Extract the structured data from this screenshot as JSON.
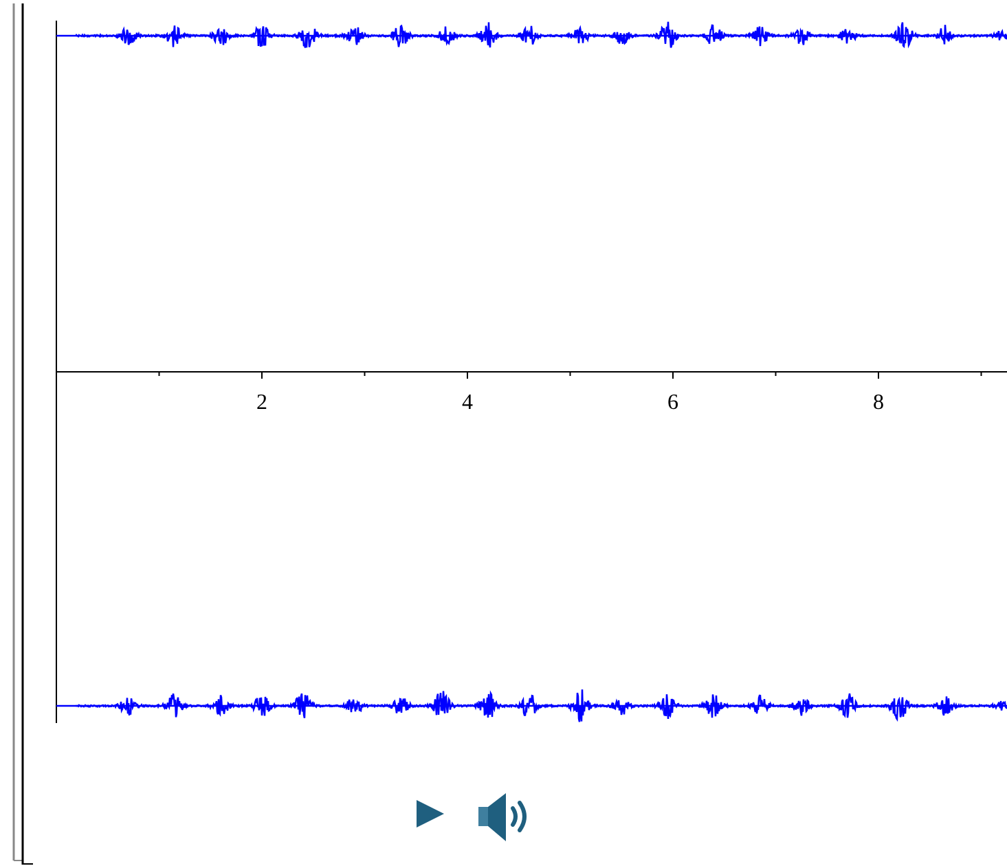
{
  "colors": {
    "waveform": "#0000ff",
    "axis": "#000000",
    "bracket_outer": "#888888",
    "bracket_inner": "#000000",
    "control_icon": "#1f5f7f"
  },
  "icons": {
    "play": "play-icon",
    "speaker": "speaker-icon"
  },
  "chart_data": {
    "type": "line",
    "title": "",
    "xlabel": "",
    "ylabel": "",
    "xlim": [
      0,
      9.3
    ],
    "x_ticks_major": [
      2,
      4,
      6,
      8
    ],
    "x_ticks_minor": [
      1,
      3,
      5,
      7,
      9
    ],
    "x_tick_labels": [
      "2",
      "4",
      "6",
      "8"
    ],
    "grid": false,
    "legend": "none",
    "channels": [
      {
        "name": "",
        "baseline": 0,
        "burst_times": [
          0.7,
          1.15,
          1.6,
          2.0,
          2.45,
          2.9,
          3.35,
          3.8,
          4.2,
          4.6,
          5.1,
          5.5,
          5.95,
          6.4,
          6.85,
          7.25,
          7.7,
          8.25,
          8.65,
          9.2
        ],
        "burst_amplitudes": [
          0.55,
          0.6,
          0.5,
          0.65,
          0.75,
          0.5,
          0.55,
          0.45,
          0.65,
          0.5,
          0.45,
          0.4,
          0.7,
          0.55,
          0.5,
          0.45,
          0.4,
          0.7,
          0.5,
          0.25
        ]
      },
      {
        "name": "",
        "baseline": 0,
        "burst_times": [
          0.7,
          1.15,
          1.6,
          2.0,
          2.4,
          2.9,
          3.35,
          3.75,
          4.2,
          4.6,
          5.1,
          5.5,
          5.95,
          6.4,
          6.85,
          7.25,
          7.7,
          8.2,
          8.65,
          9.2
        ],
        "burst_amplitudes": [
          0.45,
          0.6,
          0.55,
          0.55,
          0.7,
          0.45,
          0.45,
          0.75,
          0.7,
          0.65,
          0.8,
          0.45,
          0.6,
          0.65,
          0.55,
          0.5,
          0.6,
          0.75,
          0.45,
          0.2
        ]
      }
    ]
  },
  "controls": {
    "play_button": "play",
    "volume_button": "volume"
  }
}
